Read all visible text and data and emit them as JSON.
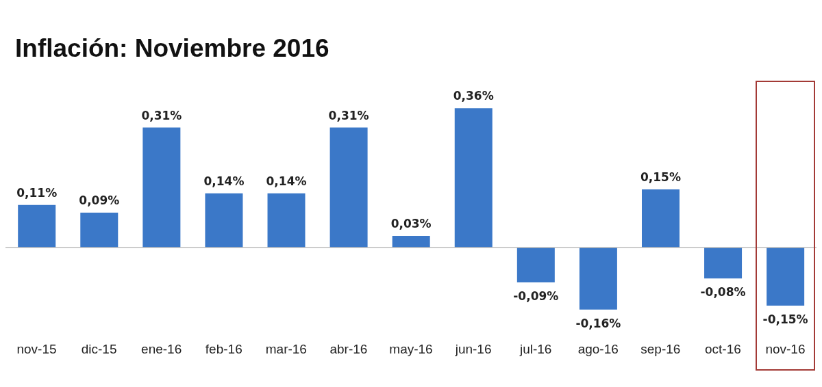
{
  "chart_data": {
    "type": "bar",
    "title": "Inflación: Noviembre 2016",
    "categories": [
      "nov-15",
      "dic-15",
      "ene-16",
      "feb-16",
      "mar-16",
      "abr-16",
      "may-16",
      "jun-16",
      "jul-16",
      "ago-16",
      "sep-16",
      "oct-16",
      "nov-16"
    ],
    "values": [
      0.11,
      0.09,
      0.31,
      0.14,
      0.14,
      0.31,
      0.03,
      0.36,
      -0.09,
      -0.16,
      0.15,
      -0.08,
      -0.15
    ],
    "value_labels": [
      "0,11%",
      "0,09%",
      "0,31%",
      "0,14%",
      "0,14%",
      "0,31%",
      "0,03%",
      "0,36%",
      "-0,09%",
      "-0,16%",
      "0,15%",
      "-0,08%",
      "-0,15%"
    ],
    "color": "#3b78c8"
  }
}
